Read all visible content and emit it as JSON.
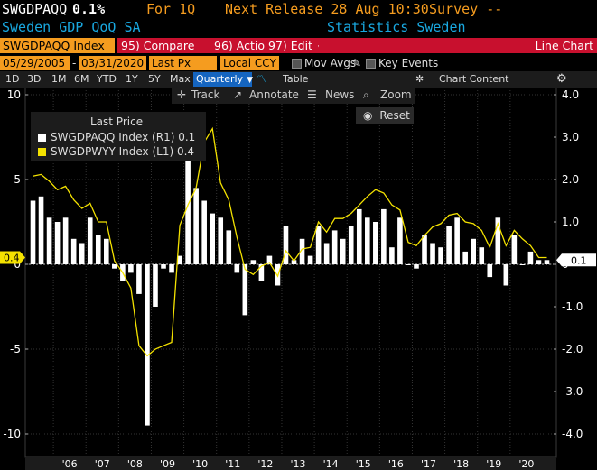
{
  "header": {
    "ticker": "SWGDPAQQ",
    "last_value": "0.1%",
    "period_label": "For 1Q",
    "next_release": "Next Release 28 Aug 10:30",
    "survey": "Survey --",
    "security_name": "Sweden GDP QoQ SA",
    "source": "Statistics Sweden"
  },
  "toolbar": {
    "security_field": "SWGDPAQQ Index",
    "compare": "95) Compare",
    "actions": "96) Actions",
    "edit": "97) Edit",
    "chart_type": "Line Chart"
  },
  "range_bar": {
    "start_date": "05/29/2005",
    "end_date": "03/31/2020",
    "price_field": "Last Px",
    "currency": "Local CCY",
    "mov_avgs": "Mov Avgs",
    "key_events": "Key Events"
  },
  "periods": {
    "items": [
      "1D",
      "3D",
      "1M",
      "6M",
      "YTD",
      "1Y",
      "5Y",
      "Max"
    ],
    "frequency": "Quarterly",
    "table": "Table",
    "chart_content": "Chart Content"
  },
  "tools": {
    "track": "Track",
    "annotate": "Annotate",
    "news": "News",
    "zoom": "Zoom",
    "reset": "Reset"
  },
  "legend": {
    "title": "Last Price",
    "entries": [
      {
        "label": "SWGDPAQQ Index  (R1)",
        "value": "0.1",
        "color": "#ffffff"
      },
      {
        "label": "SWGDPWYY Index  (L1)",
        "value": "0.4",
        "color": "#f4e200"
      }
    ]
  },
  "chart_data": {
    "type": "bar",
    "left_axis": {
      "ticks": [
        10,
        5,
        0,
        -5,
        -10
      ],
      "tick_labels": [
        "10",
        "5",
        "0",
        "-5",
        "-10"
      ],
      "range": [
        -10,
        10
      ],
      "current_label": "0.4"
    },
    "right_axis": {
      "ticks": [
        4,
        3,
        2,
        1,
        0,
        -1,
        -2,
        -3,
        -4
      ],
      "tick_labels": [
        "4.0",
        "3.0",
        "2.0",
        "1.0",
        "0",
        "-1.0",
        "-2.0",
        "-3.0",
        "-4.0"
      ],
      "range": [
        -4,
        4
      ],
      "current_label": "0.1"
    },
    "x_labels": [
      "'06",
      "'07",
      "'08",
      "'09",
      "'10",
      "'11",
      "'12",
      "'13",
      "'14",
      "'15",
      "'16",
      "'17",
      "'18",
      "'19",
      "'20"
    ],
    "x_start": "2005 Q2",
    "x_end": "2020 Q1",
    "bar_series": {
      "name": "SWGDPAQQ Index",
      "axis": "right",
      "color": "#ffffff",
      "values": [
        1.5,
        1.6,
        1.1,
        1.0,
        1.1,
        0.6,
        0.5,
        1.1,
        0.7,
        0.6,
        -0.1,
        -0.4,
        -0.2,
        -0.7,
        -3.8,
        -1.0,
        -0.1,
        -0.2,
        0.2,
        3.4,
        1.8,
        1.5,
        1.2,
        1.1,
        0.8,
        -0.2,
        -1.2,
        0.1,
        -0.4,
        0.2,
        -0.5,
        0.9,
        0.1,
        0.6,
        0.2,
        0.9,
        0.5,
        0.8,
        0.6,
        0.9,
        1.3,
        1.1,
        1.0,
        1.3,
        0.4,
        1.1,
        0.0,
        -0.1,
        0.7,
        0.5,
        0.4,
        0.9,
        1.1,
        0.3,
        0.6,
        0.4,
        -0.3,
        1.1,
        -0.5,
        0.7,
        0.0,
        0.3,
        0.1,
        0.1
      ]
    },
    "line_series": {
      "name": "SWGDPWYY Index",
      "axis": "left",
      "color": "#f4e200",
      "values": [
        5.2,
        5.3,
        4.9,
        4.4,
        4.6,
        3.8,
        3.3,
        3.6,
        2.5,
        2.5,
        0.2,
        -0.5,
        -1.4,
        -4.8,
        -5.4,
        -5.0,
        -4.8,
        -4.6,
        2.3,
        3.5,
        4.5,
        7.2,
        8.0,
        4.8,
        3.8,
        1.6,
        -0.3,
        -0.6,
        -0.1,
        0.1,
        -0.7,
        0.8,
        0.2,
        0.9,
        1.0,
        2.5,
        1.9,
        2.7,
        2.7,
        3.0,
        3.5,
        4.0,
        4.4,
        4.2,
        3.5,
        3.2,
        1.3,
        1.1,
        1.7,
        2.2,
        2.4,
        2.9,
        3.0,
        2.5,
        2.4,
        2.0,
        1.0,
        2.4,
        1.1,
        2.0,
        1.5,
        1.1,
        0.4,
        0.4
      ]
    }
  }
}
